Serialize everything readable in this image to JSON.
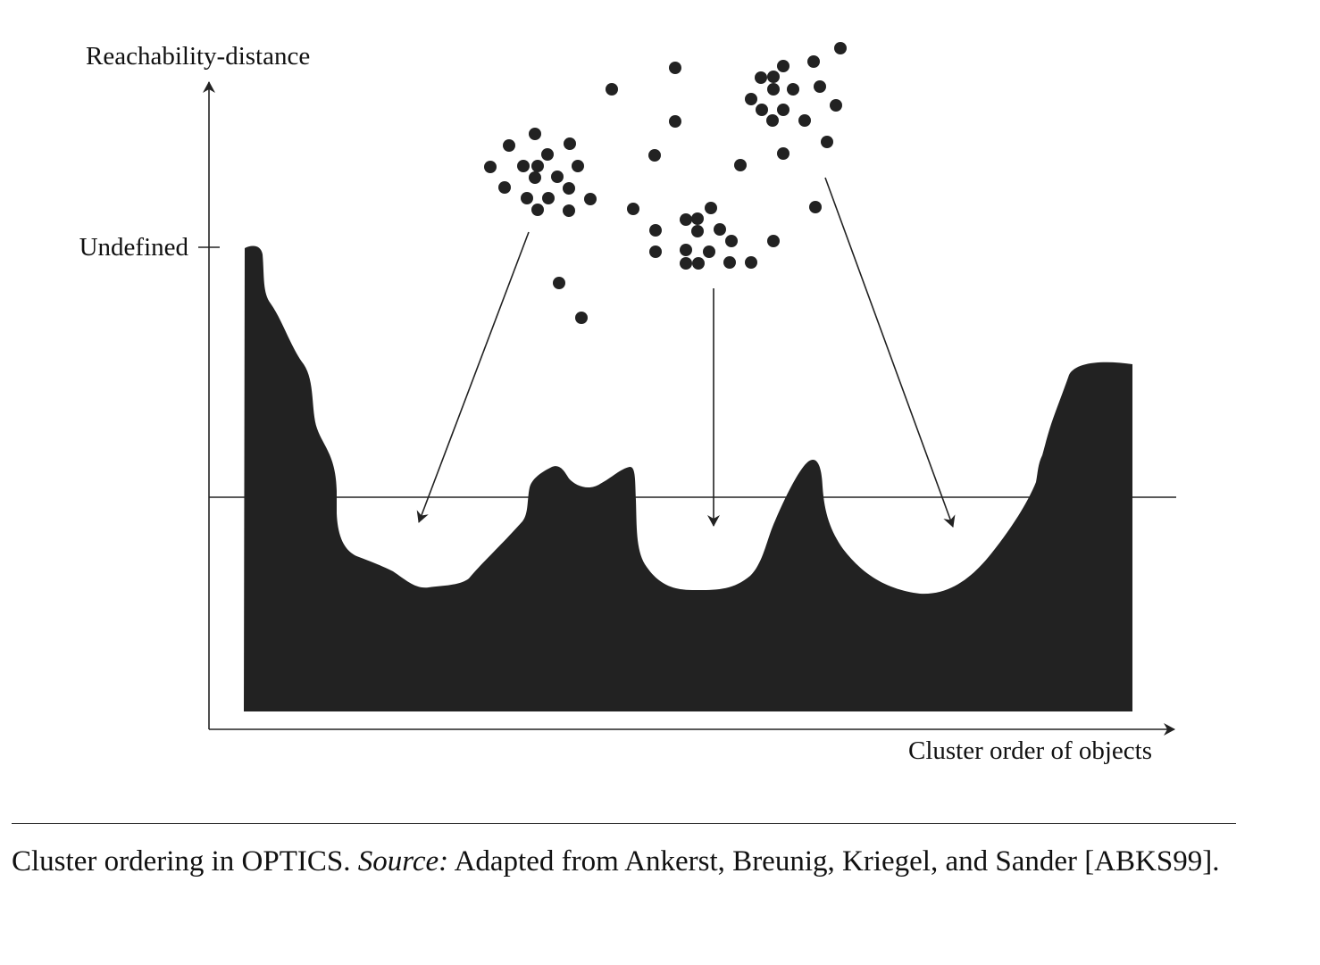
{
  "y_axis_label": "Reachability-distance",
  "x_axis_label": "Cluster order of objects",
  "undefined_tick_label": "Undefined",
  "caption": {
    "prefix": "Cluster ordering in OPTICS.",
    "source_label": "Source:",
    "text": "Adapted from Ankerst, Breunig, Kriegel, and Sander [ABKS99]."
  },
  "colors": {
    "fill": "#222222",
    "line": "#222222",
    "background": "#ffffff"
  }
}
